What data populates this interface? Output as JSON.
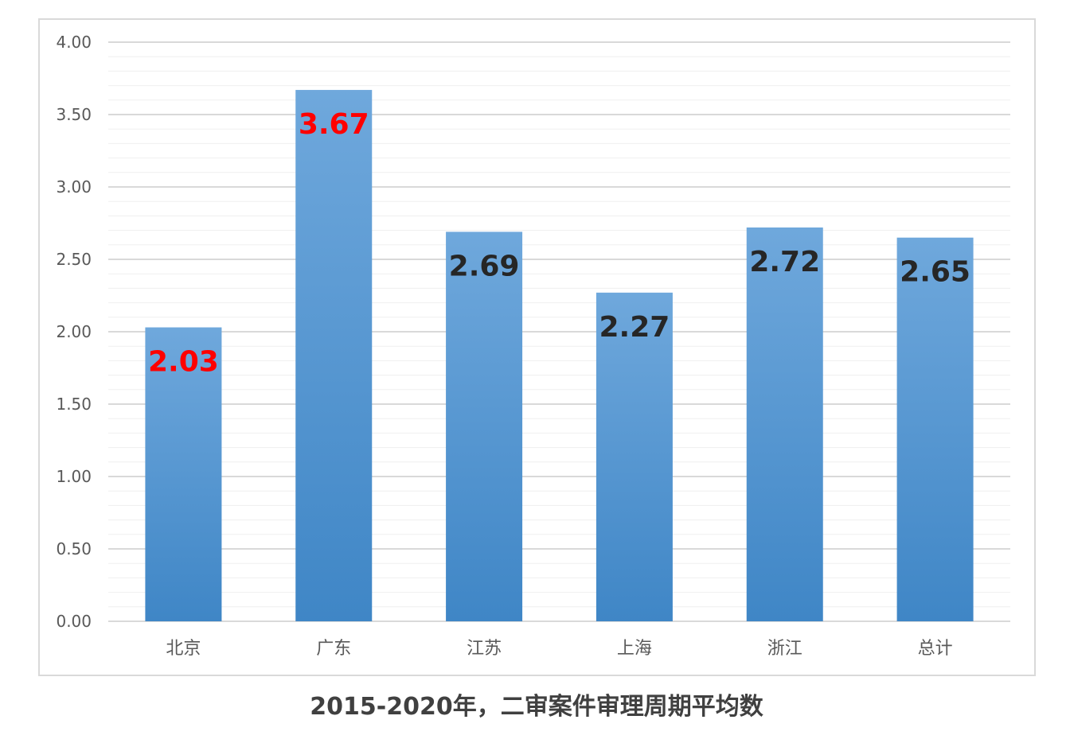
{
  "chart_data": {
    "type": "bar",
    "categories": [
      "北京",
      "广东",
      "江苏",
      "上海",
      "浙江",
      "总计"
    ],
    "values": [
      2.03,
      3.67,
      2.69,
      2.27,
      2.72,
      2.65
    ],
    "value_labels": [
      "2.03",
      "3.67",
      "2.69",
      "2.27",
      "2.72",
      "2.65"
    ],
    "highlighted": [
      true,
      true,
      false,
      false,
      false,
      false
    ],
    "y_ticks": [
      "0.00",
      "0.50",
      "1.00",
      "1.50",
      "2.00",
      "2.50",
      "3.00",
      "3.50",
      "4.00"
    ],
    "ylim": [
      0,
      4
    ],
    "grid": true,
    "xlabel": "",
    "ylabel": "",
    "caption": "2015-2020年，二审案件审理周期平均数"
  },
  "colors": {
    "bar_top": "#6fa8dc",
    "bar_bottom": "#3f86c6",
    "highlight_label": "#ff0000",
    "normal_label": "#262626",
    "grid_major": "#d9d9d9",
    "grid_minor": "#efefef",
    "frame": "#d9d9d9"
  }
}
